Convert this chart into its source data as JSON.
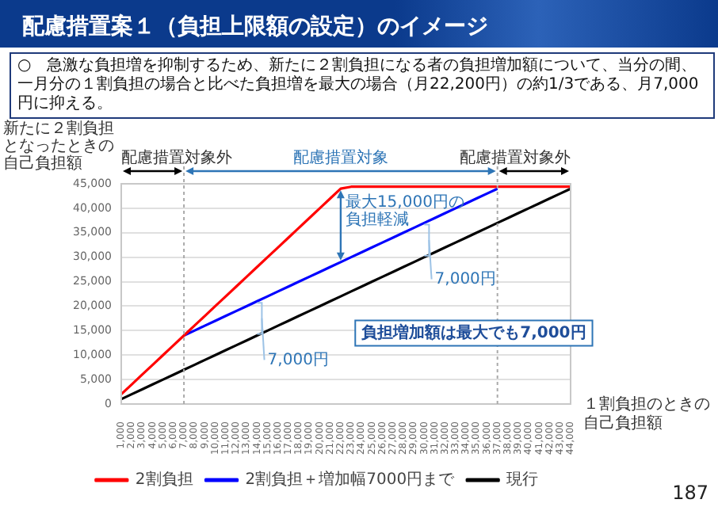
{
  "chart_data": {
    "type": "line",
    "title": "配慮措置案１（負担上限額の設定）のイメージ",
    "subtitle": "○　急激な負担増を抑制するため、新たに２割負担になる者の負担増加額について、当分の間、一月分の１割負担の場合と比べた負担増を最大の場合（月22,200円）の約1/3である、月7,000円に抑える。",
    "ylabel": "新たに２割負担となったときの自己負担額",
    "xlabel": "１割負担のときの自己負担額",
    "categories": [
      "1,000",
      "2,000",
      "3,000",
      "4,000",
      "5,000",
      "6,000",
      "7,000",
      "8,000",
      "9,000",
      "10,000",
      "11,000",
      "12,000",
      "13,000",
      "14,000",
      "15,000",
      "16,000",
      "17,000",
      "18,000",
      "19,000",
      "20,000",
      "21,000",
      "22,000",
      "23,000",
      "24,000",
      "25,000",
      "26,000",
      "27,000",
      "28,000",
      "29,000",
      "30,000",
      "31,000",
      "32,000",
      "33,000",
      "34,000",
      "35,000",
      "36,000",
      "37,000",
      "38,000",
      "39,000",
      "40,000",
      "41,000",
      "42,000",
      "43,000",
      "44,000"
    ],
    "series": [
      {
        "name": "現行",
        "color": "#000000",
        "values": [
          1000,
          2000,
          3000,
          4000,
          5000,
          6000,
          7000,
          8000,
          9000,
          10000,
          11000,
          12000,
          13000,
          14000,
          15000,
          16000,
          17000,
          18000,
          19000,
          20000,
          21000,
          22000,
          23000,
          24000,
          25000,
          26000,
          27000,
          28000,
          29000,
          30000,
          31000,
          32000,
          33000,
          34000,
          35000,
          36000,
          37000,
          38000,
          39000,
          40000,
          41000,
          42000,
          43000,
          44000
        ]
      },
      {
        "name": "2割負担＋増加幅7000円まで",
        "color": "#0000ff",
        "values": [
          null,
          null,
          null,
          null,
          null,
          null,
          14000,
          15000,
          16000,
          17000,
          18000,
          19000,
          20000,
          21000,
          22000,
          23000,
          24000,
          25000,
          26000,
          27000,
          28000,
          29000,
          30000,
          31000,
          32000,
          33000,
          34000,
          35000,
          36000,
          37000,
          38000,
          39000,
          40000,
          41000,
          42000,
          43000,
          44000,
          null,
          null,
          null,
          null,
          null,
          null,
          null
        ]
      },
      {
        "name": "2割負担",
        "color": "#ff0000",
        "values": [
          2000,
          4000,
          6000,
          8000,
          10000,
          12000,
          14000,
          16000,
          18000,
          20000,
          22000,
          24000,
          26000,
          28000,
          30000,
          32000,
          34000,
          36000,
          38000,
          40000,
          42000,
          44000,
          44400,
          44400,
          44400,
          44400,
          44400,
          44400,
          44400,
          44400,
          44400,
          44400,
          44400,
          44400,
          44400,
          44400,
          44400,
          44400,
          44400,
          44400,
          44400,
          44400,
          44400,
          44400
        ]
      }
    ],
    "ylim": [
      0,
      45000
    ],
    "yticks": [
      0,
      {
        "value": 5000,
        "label": "5,000"
      },
      {
        "value": 10000,
        "label": "10,000"
      },
      {
        "value": 15000,
        "label": "15,000"
      },
      {
        "value": 20000,
        "label": "20,000"
      },
      {
        "value": 25000,
        "label": "25,000"
      },
      {
        "value": 30000,
        "label": "30,000"
      },
      {
        "value": 35000,
        "label": "35,000"
      },
      {
        "value": 40000,
        "label": "40,000"
      },
      {
        "value": 45000,
        "label": "45,000"
      }
    ],
    "grid": "y",
    "legend": "bottom",
    "marker": "none",
    "line_style": "solid",
    "ref_lines": [
      {
        "axis": "x",
        "value": "7,000",
        "label": null,
        "color": "#aaaaaa",
        "line_style": "dotted"
      },
      {
        "axis": "x",
        "value": "37,000",
        "label": null,
        "color": "#aaaaaa",
        "line_style": "dotted"
      }
    ],
    "annotations": [
      "配慮措置対象外",
      "配慮措置対象",
      "配慮措置対象外",
      {
        "text": "最大15,000円の負担軽減",
        "x": "22,000",
        "y": 44000
      },
      {
        "text": "7,000円",
        "x": "14,000",
        "y": 21000
      },
      {
        "text": "7,000円",
        "x": "30,000",
        "y": 37000
      },
      "負担増加額は最大でも7,000円",
      "187"
    ]
  }
}
